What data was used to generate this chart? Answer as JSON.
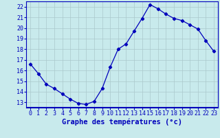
{
  "x": [
    0,
    1,
    2,
    3,
    4,
    5,
    6,
    7,
    8,
    9,
    10,
    11,
    12,
    13,
    14,
    15,
    16,
    17,
    18,
    19,
    20,
    21,
    22,
    23
  ],
  "y": [
    16.6,
    15.7,
    14.7,
    14.3,
    13.8,
    13.3,
    12.9,
    12.8,
    13.1,
    14.3,
    16.3,
    18.0,
    18.5,
    19.7,
    20.9,
    22.2,
    21.8,
    21.3,
    20.9,
    20.7,
    20.3,
    19.9,
    18.8,
    17.8
  ],
  "line_color": "#0000bb",
  "marker": "D",
  "marker_size": 2.2,
  "bg_color": "#c8eaec",
  "grid_color": "#aac8cc",
  "xlabel": "Graphe des températures (°c)",
  "xlabel_fontsize": 7.5,
  "tick_color": "#0000bb",
  "tick_fontsize": 6.0,
  "xlim": [
    -0.5,
    23.5
  ],
  "ylim": [
    12.5,
    22.5
  ],
  "yticks": [
    13,
    14,
    15,
    16,
    17,
    18,
    19,
    20,
    21,
    22
  ],
  "xticks": [
    0,
    1,
    2,
    3,
    4,
    5,
    6,
    7,
    8,
    9,
    10,
    11,
    12,
    13,
    14,
    15,
    16,
    17,
    18,
    19,
    20,
    21,
    22,
    23
  ]
}
